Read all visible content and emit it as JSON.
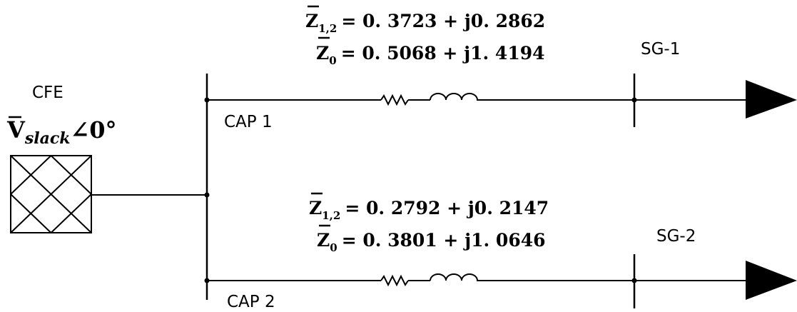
{
  "source": {
    "name": "CFE",
    "voltage_symbol": "V",
    "voltage_subscript": "slack",
    "voltage_angle": "∠0°"
  },
  "buses": {
    "cap1": "CAP 1",
    "cap2": "CAP 2",
    "sg1": "SG-1",
    "sg2": "SG-2"
  },
  "line1": {
    "z12_symbol": "Z",
    "z12_subscript": "1,2",
    "z12_value": "= 0. 3723 + j0. 2862",
    "z0_symbol": "Z",
    "z0_subscript": "0",
    "z0_value": "= 0. 5068 + j1. 4194"
  },
  "line2": {
    "z12_symbol": "Z",
    "z12_subscript": "1,2",
    "z12_value": "= 0. 2792 + j0. 2147",
    "z0_symbol": "Z",
    "z0_subscript": "0",
    "z0_value": "= 0. 3801 + j1. 0646"
  }
}
